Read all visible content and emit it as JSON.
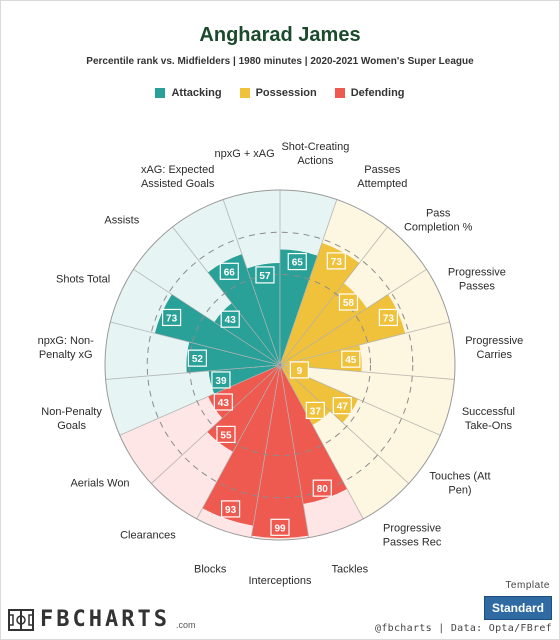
{
  "header": {
    "title": "Angharad James",
    "subtitle": "Percentile rank vs. Midfielders | 1980 minutes | 2020-2021 Women's Super League"
  },
  "legend": [
    {
      "label": "Attacking",
      "color": "#2aa198"
    },
    {
      "label": "Possession",
      "color": "#f0c23b"
    },
    {
      "label": "Defending",
      "color": "#ef5a50"
    }
  ],
  "chart_data": {
    "type": "polar_bar",
    "title": "Angharad James",
    "subtitle": "Percentile rank vs. Midfielders | 1980 minutes | 2020-2021 Women's Super League",
    "rlim": [
      0,
      100
    ],
    "categories": [
      {
        "label": "npxG + xAG",
        "value": 57,
        "group": "Attacking"
      },
      {
        "label": "Shot-Creating Actions",
        "value": 65,
        "group": "Attacking"
      },
      {
        "label": "Passes Attempted",
        "value": 73,
        "group": "Possession"
      },
      {
        "label": "Pass Completion %",
        "value": 58,
        "group": "Possession"
      },
      {
        "label": "Progressive Passes",
        "value": 73,
        "group": "Possession"
      },
      {
        "label": "Progressive Carries",
        "value": 45,
        "group": "Possession"
      },
      {
        "label": "Successful Take-Ons",
        "value": 9,
        "group": "Possession"
      },
      {
        "label": "Touches (Att Pen)",
        "value": 47,
        "group": "Possession"
      },
      {
        "label": "Progressive Passes Rec",
        "value": 37,
        "group": "Possession"
      },
      {
        "label": "Tackles",
        "value": 80,
        "group": "Defending"
      },
      {
        "label": "Interceptions",
        "value": 99,
        "group": "Defending"
      },
      {
        "label": "Blocks",
        "value": 93,
        "group": "Defending"
      },
      {
        "label": "Clearances",
        "value": 55,
        "group": "Defending"
      },
      {
        "label": "Aerials Won",
        "value": 43,
        "group": "Defending"
      },
      {
        "label": "Non-Penalty Goals",
        "value": 39,
        "group": "Attacking"
      },
      {
        "label": "npxG: Non-Penalty xG",
        "value": 52,
        "group": "Attacking"
      },
      {
        "label": "Shots Total",
        "value": 73,
        "group": "Attacking"
      },
      {
        "label": "Assists",
        "value": 43,
        "group": "Attacking"
      },
      {
        "label": "xAG: Expected Assisted Goals",
        "value": 66,
        "group": "Attacking"
      }
    ],
    "display_labels": [
      [
        "npxG + xAG"
      ],
      [
        "Shot-Creating",
        "Actions"
      ],
      [
        "Passes",
        "Attempted"
      ],
      [
        "Pass",
        "Completion %"
      ],
      [
        "Progressive",
        "Passes"
      ],
      [
        "Progressive",
        "Carries"
      ],
      [
        "Successful",
        "Take-Ons"
      ],
      [
        "Touches (Att",
        "Pen)"
      ],
      [
        "Progressive",
        "Passes Rec"
      ],
      [
        "Tackles"
      ],
      [
        "Interceptions"
      ],
      [
        "Blocks"
      ],
      [
        "Clearances"
      ],
      [
        "Aerials Won"
      ],
      [
        "Non-Penalty",
        "Goals"
      ],
      [
        "npxG: Non-",
        "Penalty xG"
      ],
      [
        "Shots Total"
      ],
      [
        "Assists"
      ],
      [
        "xAG: Expected",
        "Assisted Goals"
      ]
    ],
    "group_colors": {
      "Attacking": {
        "bar": "#2aa198",
        "bg": "#e6f4f3"
      },
      "Possession": {
        "bar": "#f0c23b",
        "bg": "#fdf6e1"
      },
      "Defending": {
        "bar": "#ef5a50",
        "bg": "#fde6e5"
      }
    },
    "dashed_rings": [
      50,
      75
    ]
  },
  "footer": {
    "template_label": "Template",
    "template_button": "Standard",
    "logo_text": "FBCHARTS",
    "logo_suffix": ".com",
    "credit": "@fbcharts | Data: Opta/FBref"
  }
}
